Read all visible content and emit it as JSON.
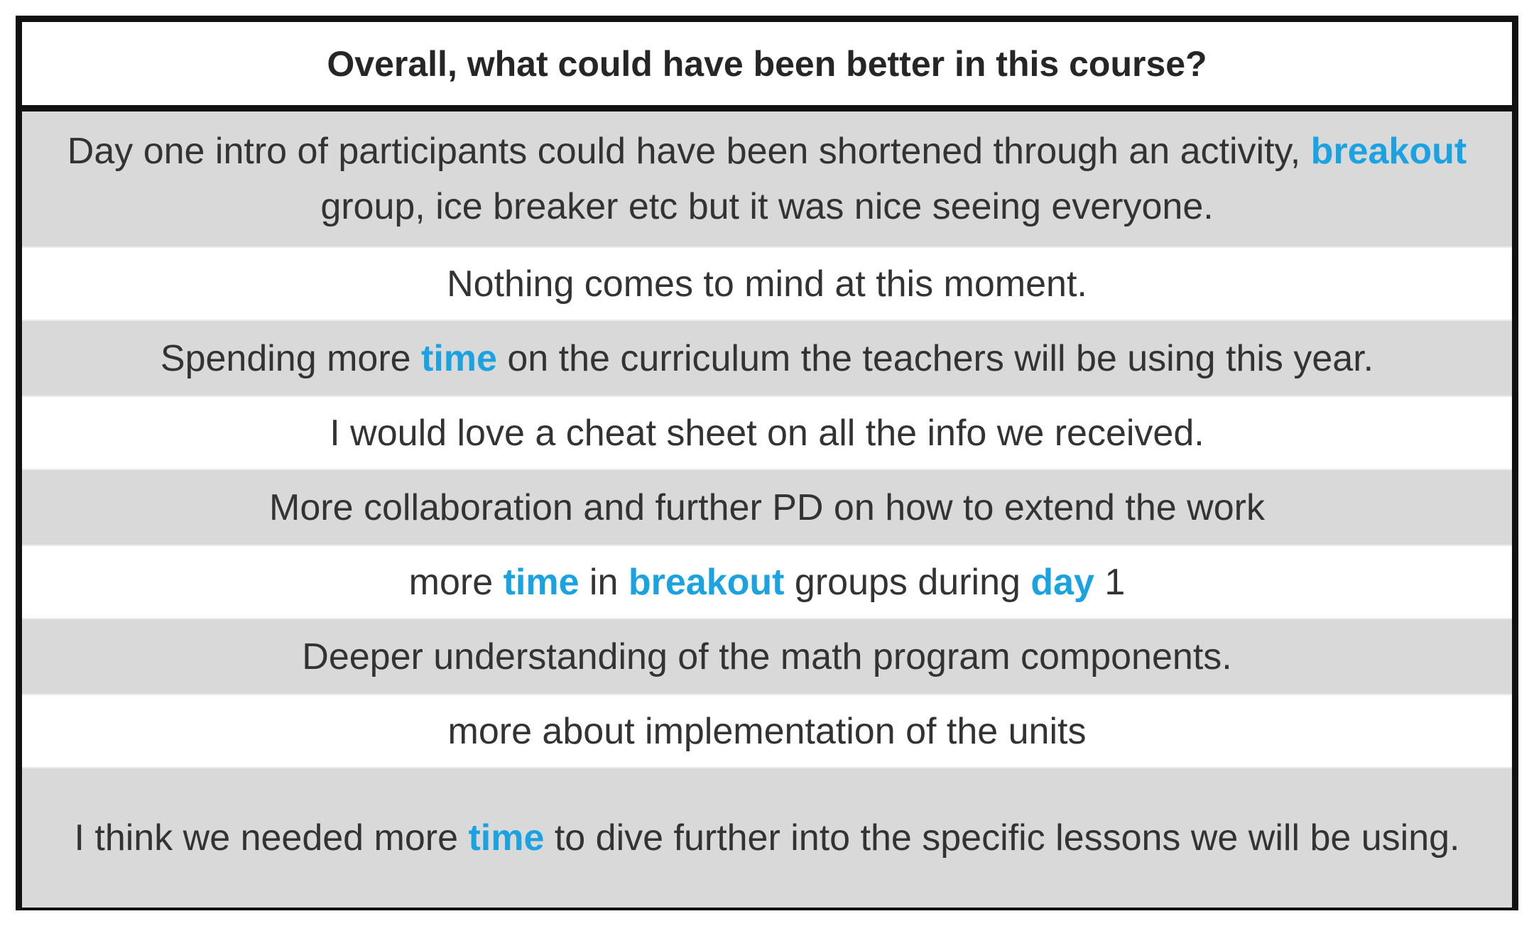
{
  "table": {
    "header": "Overall, what could have been better in this course?",
    "rows": [
      {
        "segments": [
          {
            "text": "Day one intro of participants could have been shortened through an activity, "
          },
          {
            "text": "breakout",
            "highlight": true
          },
          {
            "text": " group, ice breaker etc but it was nice seeing everyone."
          }
        ]
      },
      {
        "segments": [
          {
            "text": "Nothing comes to mind at this moment."
          }
        ]
      },
      {
        "segments": [
          {
            "text": "Spending more "
          },
          {
            "text": "time",
            "highlight": true
          },
          {
            "text": " on the curriculum the teachers will be using this year."
          }
        ]
      },
      {
        "segments": [
          {
            "text": "I would love a cheat sheet on all the info we received."
          }
        ]
      },
      {
        "segments": [
          {
            "text": "More collaboration and further PD on how to extend the work"
          }
        ]
      },
      {
        "segments": [
          {
            "text": "more "
          },
          {
            "text": "time",
            "highlight": true
          },
          {
            "text": " in "
          },
          {
            "text": "breakout",
            "highlight": true
          },
          {
            "text": " groups during "
          },
          {
            "text": "day",
            "highlight": true
          },
          {
            "text": " 1"
          }
        ]
      },
      {
        "segments": [
          {
            "text": "Deeper understanding of the math program components."
          }
        ]
      },
      {
        "segments": [
          {
            "text": "more about implementation of the units"
          }
        ]
      },
      {
        "segments": [
          {
            "text": "I think we needed more "
          },
          {
            "text": "time",
            "highlight": true
          },
          {
            "text": " to dive further into the specific lessons we will be using."
          }
        ]
      }
    ]
  },
  "colors": {
    "highlight": "#1aa3e0",
    "shaded_row": "#d9d9d9",
    "border": "#111111",
    "text": "#333333"
  }
}
